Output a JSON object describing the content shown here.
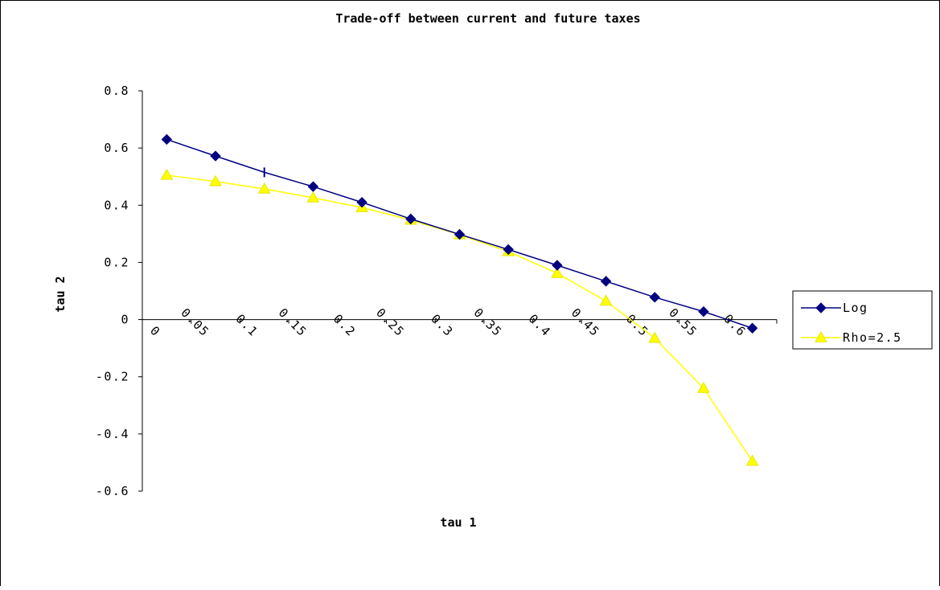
{
  "chart_data": {
    "type": "line",
    "title": "Trade-off between current and future taxes",
    "xlabel": "tau 1",
    "ylabel": "tau 2",
    "categories": [
      "0",
      "0.05",
      "0.1",
      "0.15",
      "0.2",
      "0.25",
      "0.3",
      "0.35",
      "0.4",
      "0.45",
      "0.5",
      "0.55",
      "0.6"
    ],
    "yticks": [
      "0.8",
      "0.6",
      "0.4",
      "0.2",
      "0",
      "-0.2",
      "-0.4",
      "-0.6"
    ],
    "ylim": [
      -0.6,
      0.8
    ],
    "legend_position": "right",
    "grid": false,
    "series": [
      {
        "name": "Log",
        "color": "#000080",
        "marker": "diamond",
        "values": [
          0.63,
          0.572,
          0.515,
          0.465,
          0.41,
          0.352,
          0.298,
          0.245,
          0.19,
          0.134,
          0.078,
          0.028,
          -0.03
        ]
      },
      {
        "name": "Rho=2.5",
        "color": "#ffff00",
        "marker": "triangle",
        "values": [
          0.505,
          0.483,
          0.457,
          0.426,
          0.392,
          0.348,
          0.297,
          0.238,
          0.162,
          0.065,
          -0.065,
          -0.24,
          -0.495
        ]
      }
    ]
  }
}
